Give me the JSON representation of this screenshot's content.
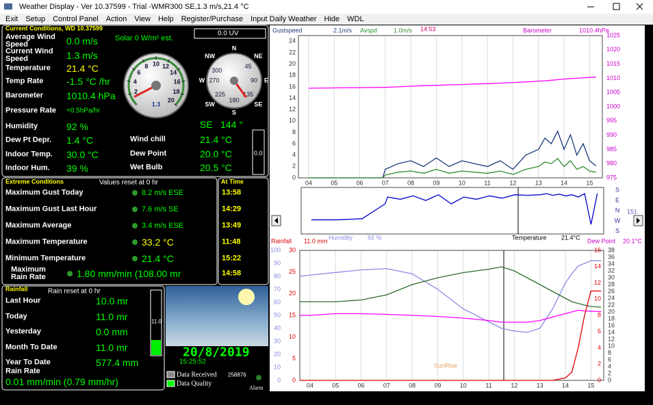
{
  "window": {
    "title": "Weather Display - Ver 10.37599 - Trial  -WMR300  SE,1.3 m/s,21.4 °C",
    "menu": [
      "Exit",
      "Setup",
      "Control Panel",
      "Action",
      "View",
      "Help",
      "Register/Purchase",
      "Input Daily Weather",
      "Hide",
      "WDL"
    ]
  },
  "current": {
    "header": "Current Conditions, WD 10.37599",
    "solar": "Solar 0 W/m² est.",
    "uv": "0.0 UV",
    "rows": [
      {
        "label": "Average Wind Speed",
        "value": "0.0 m/s"
      },
      {
        "label": "Current Wind Speed",
        "value": "1.3 m/s"
      },
      {
        "label": "Temperature",
        "value": "21.4 °C",
        "color": "#ffff00"
      },
      {
        "label": "Temp Rate",
        "value": "-1.5 °C /hr"
      },
      {
        "label": "Barometer",
        "value": "1010.4 hPa"
      },
      {
        "label": "Pressure Rate",
        "value": "+0.5hPa/hr"
      },
      {
        "label": "Humidity",
        "value": "92 %"
      },
      {
        "label": "Dew Pt Depr.",
        "value": "1.4 °C"
      },
      {
        "label": "Indoor Temp.",
        "value": "30.0 °C"
      },
      {
        "label": "Indoor Hum.",
        "value": "39 %"
      }
    ],
    "side_rows": [
      {
        "label": "Wind chill",
        "value": "21.4 °C"
      },
      {
        "label": "Dew Point",
        "value": "20.0 °C"
      },
      {
        "label": "Wet Bulb",
        "value": "20.5 °C"
      }
    ],
    "wind_direction": {
      "compass": "SE",
      "value": 144,
      "value_label": "144 °"
    },
    "bar_value": "0.0",
    "speed_gauge": {
      "lim": [
        0,
        20
      ],
      "ticks": [
        2,
        4,
        6,
        8,
        10,
        12,
        14,
        16,
        18,
        20
      ],
      "value": 1.3
    },
    "compass": {
      "points": [
        "N",
        "NE",
        "E",
        "SE",
        "S",
        "SW",
        "W",
        "NW"
      ],
      "ticks": [
        300,
        45,
        90,
        135,
        180,
        225,
        270
      ]
    }
  },
  "extremes": {
    "header": "Extreme Conditions",
    "note": "Values reset at 0 hr",
    "time_header": "At Time",
    "rows": [
      {
        "label": "Maximum Gust Today",
        "value": "8.2 m/s ESE",
        "time": "13:58"
      },
      {
        "label": "Maximum Gust Last Hour",
        "value": "7.6 m/s  SE",
        "time": "14:29"
      },
      {
        "label": "Maximum Average",
        "value": "3.4 m/s ESE",
        "time": "13:49"
      },
      {
        "label": "Maximum Temperature",
        "value": "33.2 °C",
        "time": "11:48",
        "color": "#ffff00"
      },
      {
        "label": "Minimum Temperature",
        "value": "21.4 °C",
        "time": "15:22"
      },
      {
        "label": "Maximum Rain Rate",
        "value": "1.80 mm/min (108.00 mr",
        "time": "14:58"
      }
    ]
  },
  "rainfall": {
    "header": "Rainfall",
    "note": "Rain reset at 0 hr",
    "bar_value": "11.0",
    "rows": [
      {
        "label": "Last Hour",
        "value": "10.0 mr"
      },
      {
        "label": "Today",
        "value": "11.0 mr"
      },
      {
        "label": "Yesterday",
        "value": "0.0 mm"
      },
      {
        "label": "Month To Date",
        "value": "11.0 mr"
      },
      {
        "label": "Year To Date",
        "value": "577.4 mm"
      }
    ],
    "rate_label": "Rain Rate",
    "rate_value": "0.01 mm/min (0.79 mm/hr)"
  },
  "status": {
    "date": "20/8/2019",
    "time": "15:25:52",
    "received": "Data Received",
    "quality": "Data Quality",
    "count": "258876",
    "alarm": "Alarm"
  },
  "wind_graph": {
    "readouts": {
      "gust": "2.1m/s",
      "avg": "1.0m/s",
      "time": "14:53",
      "barometer": "1010.4hPa"
    },
    "x": [
      4,
      5,
      6,
      6.9,
      7,
      7.5,
      8,
      8.5,
      9,
      9.5,
      10,
      10.5,
      11,
      11.5,
      12,
      12.5,
      13,
      13.25,
      13.5,
      13.75,
      14,
      14.25,
      14.5,
      14.75,
      15,
      15.25
    ],
    "xlim": [
      3.6,
      15.5
    ],
    "xticks": [
      {
        "value": 4,
        "label": "04"
      },
      {
        "value": 5,
        "label": "05"
      },
      {
        "value": 6,
        "label": "06"
      },
      {
        "value": 7,
        "label": "07"
      },
      {
        "value": 8,
        "label": "08"
      },
      {
        "value": 9,
        "label": "09"
      },
      10,
      11,
      12,
      13,
      14,
      15
    ],
    "ylim": [
      0,
      25
    ],
    "yticks": [
      0,
      2,
      4,
      6,
      8,
      10,
      12,
      14,
      16,
      18,
      20,
      22,
      24
    ],
    "y2lim": [
      975,
      1025
    ],
    "y2ticks": [
      975,
      980,
      985,
      990,
      995,
      1000,
      1005,
      1010,
      1015,
      1020,
      1025
    ],
    "grid": true,
    "series": [
      {
        "name": "Gustspeed",
        "color": "#1a3a7a",
        "values": [
          0,
          0,
          0,
          0,
          1.5,
          2.5,
          3,
          2,
          3.5,
          2,
          3,
          2.5,
          2,
          3,
          1.5,
          4,
          5,
          7,
          6,
          8.2,
          5,
          7.6,
          4,
          6,
          3,
          2.1
        ]
      },
      {
        "name": "Avspd",
        "color": "#2e8b2e",
        "values": [
          0,
          0,
          0,
          0,
          0.5,
          1,
          1.2,
          0.8,
          1.5,
          0.8,
          1.2,
          1,
          0.8,
          1.2,
          0.6,
          1.5,
          2,
          2.8,
          2.5,
          3.4,
          2,
          3,
          1.5,
          2,
          1.2,
          1
        ]
      },
      {
        "name": "Barometer",
        "color": "#ff00ff",
        "axis": "y2",
        "values": [
          1006.5,
          1006.6,
          1006.7,
          1006.8,
          1006.8,
          1007,
          1007.2,
          1007.4,
          1007.5,
          1007.7,
          1007.8,
          1008,
          1008.1,
          1008.3,
          1008.5,
          1008.7,
          1009,
          1009.1,
          1009.3,
          1009.5,
          1009.7,
          1009.9,
          1010,
          1010.2,
          1010.3,
          1010.4
        ]
      }
    ]
  },
  "direction_graph": {
    "readout": "151",
    "color": "#0000cc",
    "ylim": [
      -180,
      180
    ],
    "yticks": [
      {
        "value": 180,
        "label": "S"
      },
      {
        "value": 90,
        "label": "E"
      },
      {
        "value": 0,
        "label": "N"
      },
      {
        "value": -90,
        "label": "W"
      },
      {
        "value": -180,
        "label": "S"
      }
    ],
    "values": [
      -80,
      -80,
      -70,
      60,
      120,
      100,
      130,
      90,
      140,
      60,
      120,
      100,
      130,
      110,
      140,
      135,
      140,
      150,
      135,
      145,
      130,
      140,
      120,
      150,
      -120,
      151
    ]
  },
  "temp_graph": {
    "readouts": {
      "rain": "11.0 mm",
      "humidity": "92 %",
      "temperature": "21.4°C",
      "dew": "20.1°C"
    },
    "annotation": "SunRise",
    "x": [
      3.6,
      4,
      5,
      6,
      7,
      8,
      9,
      10,
      11,
      11.5,
      12,
      12.5,
      13,
      13.5,
      14,
      14.25,
      14.5,
      14.75,
      15,
      15.4
    ],
    "xlim": [
      3.6,
      15.5
    ],
    "xticks": [
      {
        "value": 4,
        "label": "04"
      },
      {
        "value": 5,
        "label": "05"
      },
      {
        "value": 6,
        "label": "06"
      },
      {
        "value": 7,
        "label": "07"
      },
      {
        "value": 8,
        "label": "08"
      },
      {
        "value": 9,
        "label": "09"
      },
      10,
      11,
      12,
      13,
      14,
      15
    ],
    "ylim": [
      0,
      100
    ],
    "yticks": [
      0,
      10,
      20,
      30,
      40,
      50,
      60,
      70,
      80,
      90,
      100
    ],
    "y3lim": [
      0,
      30
    ],
    "y3ticks": [
      0,
      5,
      10,
      15,
      20,
      25,
      30
    ],
    "y2lim": [
      0,
      38
    ],
    "y2ticks": [
      0,
      2,
      4,
      6,
      8,
      10,
      12,
      14,
      16,
      18,
      20,
      22,
      24,
      26,
      28,
      30,
      32,
      34,
      36,
      38
    ],
    "y4lim": [
      0,
      16
    ],
    "y4ticks": [
      0,
      2,
      4,
      6,
      8,
      10,
      12,
      14,
      16
    ],
    "grid": true,
    "series": [
      {
        "name": "Humidity",
        "color": "#8a8ae6",
        "axis": "y",
        "values": [
          80,
          81,
          83,
          85,
          86,
          82,
          70,
          55,
          45,
          40,
          38,
          37,
          40,
          55,
          75,
          82,
          88,
          90,
          92,
          92
        ]
      },
      {
        "name": "Temperature",
        "color": "#2e6b2e",
        "axis": "y2",
        "values": [
          23,
          23,
          23,
          23.5,
          25,
          28,
          30,
          31.5,
          32.5,
          33.2,
          32,
          30,
          28,
          26,
          24,
          23,
          22.5,
          22,
          21.6,
          21.4
        ]
      },
      {
        "name": "Dew Point",
        "color": "#ff00ff",
        "axis": "y2",
        "values": [
          19,
          19,
          19.5,
          19.5,
          19.3,
          19,
          18.7,
          18.2,
          17.5,
          17,
          17,
          17,
          17.5,
          18.5,
          19.5,
          20,
          20.5,
          20.3,
          20.2,
          20.1
        ]
      },
      {
        "name": "Rainfall",
        "color": "#dd0000",
        "axis": "y4",
        "values": [
          0,
          0,
          0,
          0,
          0,
          0,
          0,
          0,
          0,
          0,
          0,
          0,
          0,
          0,
          0.3,
          1,
          4,
          8,
          11,
          11
        ]
      }
    ]
  }
}
